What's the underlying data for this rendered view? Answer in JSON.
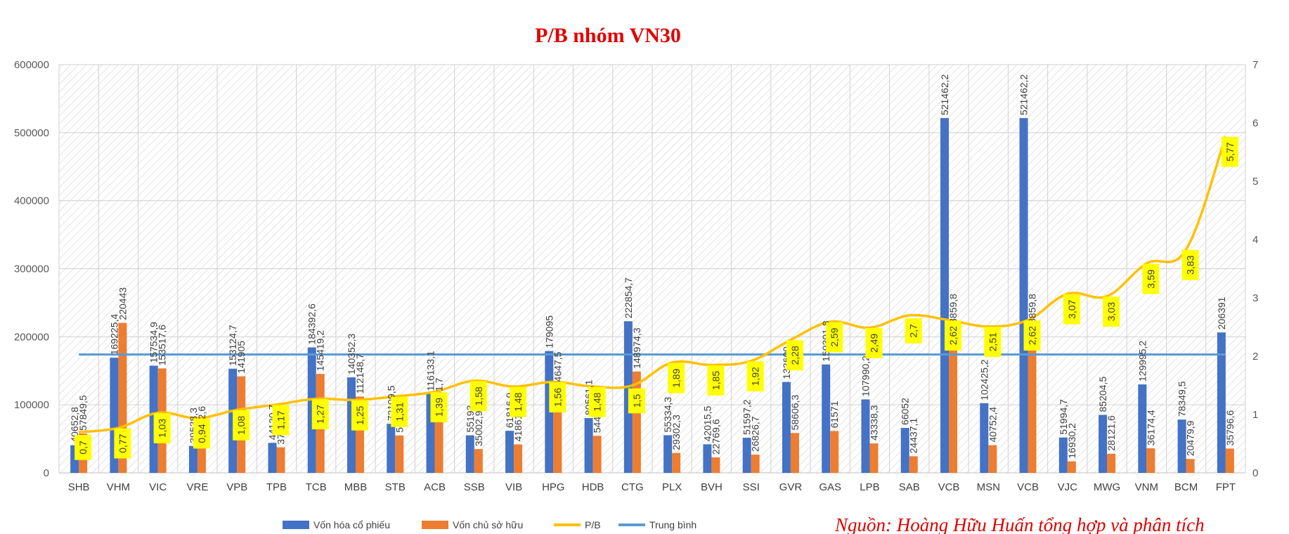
{
  "chart_data": {
    "type": "bar",
    "title": "P/B nhóm VN30",
    "source": "Nguồn: Hoàng Hữu Huấn tổng hợp và phân tích",
    "categories": [
      "SHB",
      "VHM",
      "VIC",
      "VRE",
      "VPB",
      "TPB",
      "TCB",
      "MBB",
      "STB",
      "ACB",
      "SSB",
      "VIB",
      "HPG",
      "HDB",
      "CTG",
      "PLX",
      "BVH",
      "SSI",
      "GVR",
      "GAS",
      "LPB",
      "SAB",
      "VCB",
      "MSN",
      "VCB",
      "VJC",
      "MWG",
      "VNM",
      "BCM",
      "FPT"
    ],
    "series": [
      {
        "name": "Vốn hóa cổ phiếu",
        "type": "bar",
        "axis": "left",
        "color": "#4472c4",
        "values": [
          40652.8,
          169225.4,
          157534.9,
          39538.3,
          153124.7,
          44120.7,
          184392.6,
          140352.3,
          72109.5,
          116133.1,
          55193,
          61816.9,
          179095,
          80561.1,
          222854.7,
          55334.3,
          42015.5,
          51597.2,
          133600,
          159301.8,
          107990.2,
          66052,
          521462.2,
          102425.2,
          521462.2,
          51994.7,
          85204.5,
          129995.2,
          78349.5,
          206391
        ],
        "labels": [
          "40652,8",
          "169225,4",
          "157534,9",
          "39538,3",
          "153124,7",
          "44120,7",
          "184392,6",
          "140352,3",
          "72109,5",
          "116133,1",
          "55193",
          "61816,9",
          "179095",
          "80561,1",
          "222854,7",
          "55334,3",
          "42015,5",
          "51597,2",
          "133600",
          "159301,8",
          "107990,2",
          "66052",
          "521462,2",
          "102425,2",
          "521462,2",
          "51994,7",
          "85204,5",
          "129995,2",
          "78349,5",
          "206391"
        ]
      },
      {
        "name": "Vốn chủ sở hữu",
        "type": "bar",
        "axis": "left",
        "color": "#ed7d31",
        "values": [
          57849.5,
          220443,
          153517.6,
          41922.6,
          141905,
          37599.3,
          145419.2,
          112148.7,
          54971.1,
          83461.7,
          35002.9,
          41861.8,
          114647.5,
          54491.3,
          148974.3,
          29302.3,
          22769.6,
          26826.7,
          58606.3,
          61571,
          43338.3,
          24437.1,
          198859.8,
          40752.4,
          198859.8,
          16930.2,
          28121.6,
          36174.4,
          20479.9,
          35796.6
        ],
        "labels": [
          "57849,5",
          "220443",
          "153517,6",
          "41922,6",
          "141905",
          "37599,3",
          "145419,2",
          "112148,7",
          "54971,1",
          "83461,7",
          "35002,9",
          "41861,8",
          "114647,5",
          "54491,3",
          "148974,3",
          "29302,3",
          "22769,6",
          "26826,7",
          "58606,3",
          "61571",
          "43338,3",
          "24437,1",
          "198859,8",
          "40752,4",
          "198859,8",
          "16930,2",
          "28121,6",
          "36174,4",
          "20479,9",
          "35796,6"
        ]
      },
      {
        "name": "P/B",
        "type": "line",
        "axis": "right",
        "color": "#ffc000",
        "values": [
          0.7,
          0.77,
          1.03,
          0.94,
          1.08,
          1.17,
          1.27,
          1.25,
          1.31,
          1.39,
          1.58,
          1.48,
          1.56,
          1.48,
          1.5,
          1.89,
          1.85,
          1.92,
          2.28,
          2.59,
          2.49,
          2.7,
          2.62,
          2.51,
          2.62,
          3.07,
          3.03,
          3.59,
          3.83,
          5.77
        ],
        "labels": [
          "0,7",
          "0,77",
          "1,03",
          "0,94",
          "1,08",
          "1,17",
          "1,27",
          "1,25",
          "1,31",
          "1,39",
          "1,58",
          "1,48",
          "1,56",
          "1,48",
          "1,5",
          "1,89",
          "1,85",
          "1,92",
          "2,28",
          "2,59",
          "2,49",
          "2,7",
          "2,62",
          "2,51",
          "2,62",
          "3,07",
          "3,03",
          "3,59",
          "3,83",
          "5,77"
        ]
      },
      {
        "name": "Trung bình",
        "type": "line",
        "axis": "right",
        "color": "#5b9bd5",
        "value": 2.03
      }
    ],
    "ylim": [
      0,
      600000
    ],
    "y_ticks": [
      "0",
      "100000",
      "200000",
      "300000",
      "400000",
      "500000",
      "600000"
    ],
    "y2lim": [
      0,
      7
    ],
    "y2_ticks": [
      "0",
      "1",
      "2",
      "3",
      "4",
      "5",
      "6",
      "7"
    ],
    "grid": "hatched",
    "legend": "bottom"
  }
}
